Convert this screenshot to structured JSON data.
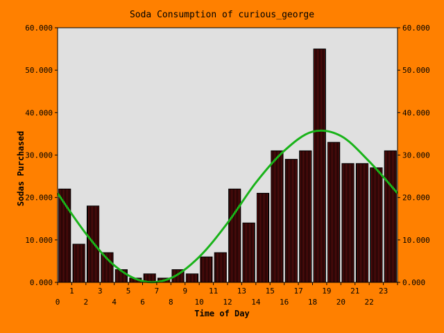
{
  "colors": {
    "background": "#ff8000",
    "plot_background": "#e0e0e0",
    "bar_fill": "#6e1010",
    "bar_stripe": "#000000",
    "curve": "#19b319"
  },
  "chart_data": {
    "type": "bar",
    "title": "Soda Consumption of curious_george",
    "xlabel": "Time of Day",
    "ylabel": "Sodas Purchased",
    "categories": [
      "0",
      "1",
      "2",
      "3",
      "4",
      "5",
      "6",
      "7",
      "8",
      "9",
      "10",
      "11",
      "12",
      "13",
      "14",
      "15",
      "16",
      "17",
      "18",
      "19",
      "20",
      "21",
      "22",
      "23"
    ],
    "values": [
      22,
      9,
      18,
      7,
      3,
      1,
      2,
      1,
      3,
      2,
      6,
      7,
      22,
      14,
      21,
      31,
      29,
      31,
      55,
      33,
      28,
      28,
      27,
      31
    ],
    "ylim": [
      0,
      60
    ],
    "y_ticks": [
      "0.000",
      "10.000",
      "20.000",
      "30.000",
      "40.000",
      "50.000",
      "60.000"
    ],
    "x_ticks_top_row": [
      "1",
      "3",
      "5",
      "7",
      "9",
      "11",
      "13",
      "15",
      "17",
      "19",
      "21",
      "23"
    ],
    "x_ticks_bottom_row": [
      "0",
      "2",
      "4",
      "6",
      "8",
      "10",
      "12",
      "14",
      "16",
      "18",
      "20",
      "22"
    ],
    "grid": false,
    "legend": "none",
    "series": [
      {
        "type": "bar",
        "values": [
          22,
          9,
          18,
          7,
          3,
          1,
          2,
          1,
          3,
          2,
          6,
          7,
          22,
          14,
          21,
          31,
          29,
          31,
          55,
          33,
          28,
          28,
          27,
          31
        ]
      },
      {
        "type": "line",
        "smooth": true,
        "x": [
          0,
          2,
          4,
          6,
          8,
          10,
          12,
          14,
          16,
          18,
          20,
          22,
          24
        ],
        "values": [
          21,
          11.5,
          4,
          0.3,
          1,
          6,
          14,
          23.5,
          31,
          35.5,
          34.5,
          28.5,
          21
        ]
      }
    ]
  }
}
